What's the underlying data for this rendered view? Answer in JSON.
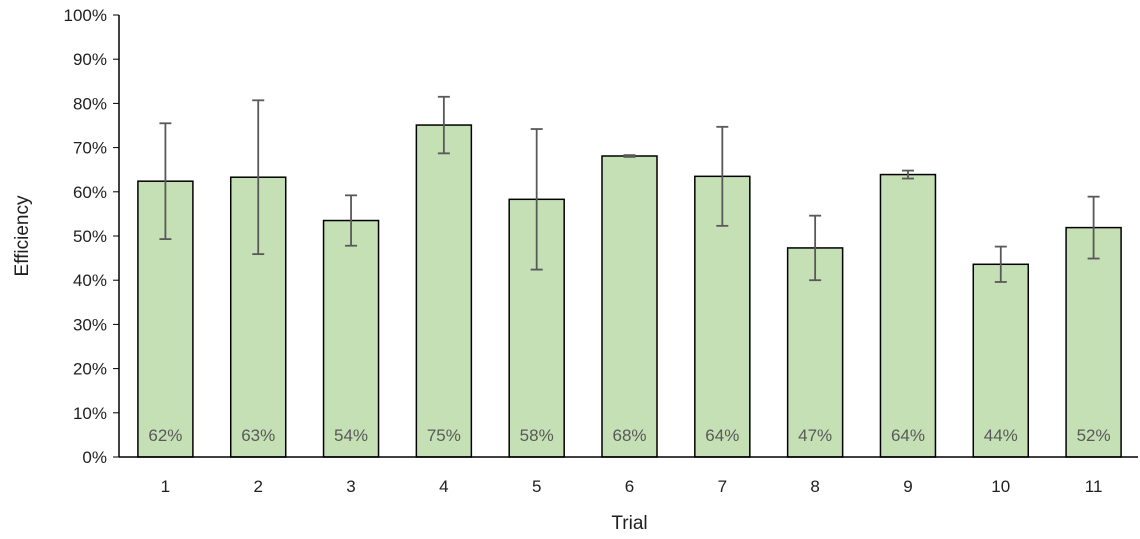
{
  "chart_data": {
    "type": "bar",
    "title": "",
    "xlabel": "Trial",
    "ylabel": "Efficiency",
    "ylim": [
      0,
      100
    ],
    "ytick_step": 10,
    "ytick_suffix": "%",
    "grid": false,
    "legend": "none",
    "categories": [
      "1",
      "2",
      "3",
      "4",
      "5",
      "6",
      "7",
      "8",
      "9",
      "10",
      "11"
    ],
    "values": [
      62.4,
      63.3,
      53.5,
      75.1,
      58.3,
      68.1,
      63.5,
      47.3,
      63.9,
      43.6,
      51.9
    ],
    "error": [
      13.1,
      17.4,
      5.7,
      6.4,
      15.9,
      0.2,
      11.2,
      7.3,
      0.9,
      4.0,
      7.0
    ],
    "data_labels": [
      "62%",
      "63%",
      "54%",
      "75%",
      "58%",
      "68%",
      "64%",
      "47%",
      "64%",
      "44%",
      "52%"
    ],
    "colors": {
      "bar_fill": "#c5e0b4",
      "bar_stroke": "#000000",
      "error_bar": "#595959",
      "axis": "#000000",
      "data_label": "#595959"
    }
  }
}
